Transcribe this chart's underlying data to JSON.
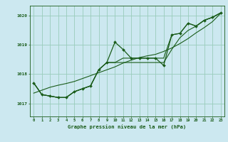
{
  "title": "Graphe pression niveau de la mer (hPa)",
  "bg_color": "#cce8f0",
  "plot_bg_color": "#cce8f0",
  "grid_color": "#99ccbb",
  "line_color": "#1a5c1a",
  "marker_color": "#1a5c1a",
  "x_ticks": [
    0,
    1,
    2,
    3,
    4,
    5,
    6,
    7,
    8,
    9,
    10,
    11,
    12,
    13,
    14,
    15,
    16,
    17,
    18,
    19,
    20,
    21,
    22,
    23
  ],
  "y_ticks": [
    1017,
    1018,
    1019,
    1020
  ],
  "ylim": [
    1016.55,
    1020.35
  ],
  "xlim": [
    -0.5,
    23.5
  ],
  "series": {
    "hourly": [
      1017.7,
      1017.3,
      1017.25,
      1017.2,
      1017.2,
      1017.4,
      1017.5,
      1017.6,
      1018.15,
      1018.4,
      1019.1,
      1018.85,
      1018.55,
      1018.55,
      1018.55,
      1018.55,
      1018.3,
      1019.35,
      1019.4,
      1019.75,
      1019.65,
      1019.85,
      1019.95,
      1020.1
    ],
    "min_line": [
      1017.7,
      1017.3,
      1017.25,
      1017.2,
      1017.2,
      1017.4,
      1017.5,
      1017.6,
      1018.15,
      1018.4,
      1018.4,
      1018.4,
      1018.4,
      1018.4,
      1018.4,
      1018.4,
      1018.4,
      1018.85,
      1019.25,
      1019.5,
      1019.65,
      1019.85,
      1019.95,
      1020.1
    ],
    "max_line": [
      1017.7,
      1017.3,
      1017.25,
      1017.2,
      1017.2,
      1017.4,
      1017.5,
      1017.6,
      1018.15,
      1018.4,
      1018.4,
      1018.55,
      1018.55,
      1018.55,
      1018.55,
      1018.55,
      1018.55,
      1019.35,
      1019.4,
      1019.75,
      1019.65,
      1019.85,
      1019.95,
      1020.1
    ],
    "trend": [
      1017.35,
      1017.45,
      1017.55,
      1017.62,
      1017.68,
      1017.75,
      1017.85,
      1017.95,
      1018.05,
      1018.15,
      1018.25,
      1018.38,
      1018.48,
      1018.57,
      1018.63,
      1018.68,
      1018.78,
      1018.9,
      1019.05,
      1019.22,
      1019.42,
      1019.6,
      1019.8,
      1020.08
    ]
  }
}
